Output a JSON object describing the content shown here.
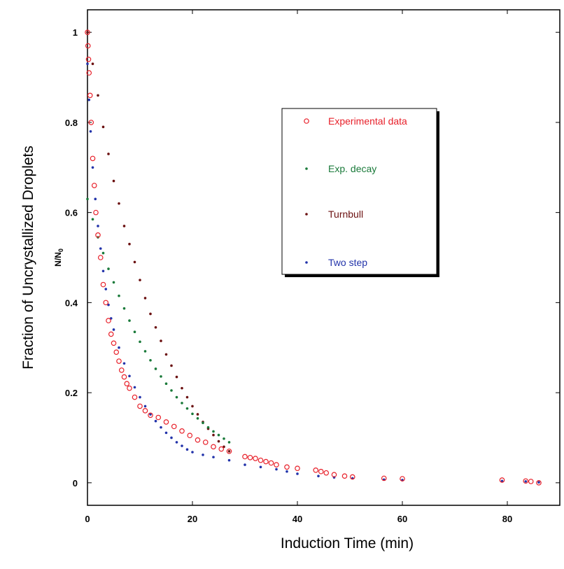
{
  "chart_data": {
    "type": "scatter",
    "xlabel": "Induction Time (min)",
    "ylabel": "Fraction of Uncrystallized Droplets",
    "ylabel_sub": "N/N",
    "ylabel_sub_subscript": "0",
    "xlim": [
      0,
      90
    ],
    "ylim": [
      -0.05,
      1.05
    ],
    "xticks": [
      0,
      20,
      40,
      60,
      80
    ],
    "xtick_labels": [
      "0",
      "20",
      "40",
      "60",
      "80"
    ],
    "yticks": [
      0,
      0.2,
      0.4,
      0.6,
      0.8,
      1
    ],
    "ytick_labels": [
      "0",
      "0.2",
      "0.4",
      "0.6",
      "0.8",
      "1"
    ],
    "grid": false,
    "legend_position": "top-right (inside plot)",
    "series": [
      {
        "name": "Experimental data",
        "marker": "open-circle",
        "color": "#e8202a",
        "points": [
          [
            0.0,
            1.0
          ],
          [
            0.1,
            0.97
          ],
          [
            0.2,
            0.94
          ],
          [
            0.3,
            0.91
          ],
          [
            0.5,
            0.86
          ],
          [
            0.7,
            0.8
          ],
          [
            1.0,
            0.72
          ],
          [
            1.3,
            0.66
          ],
          [
            1.6,
            0.6
          ],
          [
            2.0,
            0.55
          ],
          [
            2.5,
            0.5
          ],
          [
            3.0,
            0.44
          ],
          [
            3.5,
            0.4
          ],
          [
            4.0,
            0.36
          ],
          [
            4.5,
            0.33
          ],
          [
            5.0,
            0.31
          ],
          [
            5.5,
            0.29
          ],
          [
            6.0,
            0.27
          ],
          [
            6.5,
            0.25
          ],
          [
            7.0,
            0.235
          ],
          [
            7.5,
            0.22
          ],
          [
            8.0,
            0.21
          ],
          [
            9.0,
            0.19
          ],
          [
            10.0,
            0.17
          ],
          [
            11.0,
            0.16
          ],
          [
            12.0,
            0.15
          ],
          [
            13.5,
            0.145
          ],
          [
            15.0,
            0.135
          ],
          [
            16.5,
            0.125
          ],
          [
            18.0,
            0.115
          ],
          [
            19.5,
            0.105
          ],
          [
            21.0,
            0.095
          ],
          [
            22.5,
            0.09
          ],
          [
            24.0,
            0.08
          ],
          [
            25.5,
            0.075
          ],
          [
            27.0,
            0.07
          ],
          [
            30.0,
            0.058
          ],
          [
            31.0,
            0.056
          ],
          [
            32.0,
            0.054
          ],
          [
            33.0,
            0.05
          ],
          [
            34.0,
            0.047
          ],
          [
            35.0,
            0.044
          ],
          [
            36.0,
            0.04
          ],
          [
            38.0,
            0.035
          ],
          [
            40.0,
            0.032
          ],
          [
            43.5,
            0.028
          ],
          [
            44.5,
            0.025
          ],
          [
            45.5,
            0.022
          ],
          [
            47.0,
            0.018
          ],
          [
            49.0,
            0.015
          ],
          [
            50.5,
            0.013
          ],
          [
            56.5,
            0.01
          ],
          [
            60.0,
            0.009
          ],
          [
            79.0,
            0.006
          ],
          [
            83.5,
            0.004
          ],
          [
            84.5,
            0.003
          ],
          [
            86.0,
            0.0
          ]
        ]
      },
      {
        "name": "Exp. decay",
        "marker": "dot",
        "color": "#1a7a3a",
        "points": [
          [
            0.0,
            0.63
          ],
          [
            1.0,
            0.585
          ],
          [
            2.0,
            0.545
          ],
          [
            3.0,
            0.51
          ],
          [
            4.0,
            0.475
          ],
          [
            5.0,
            0.445
          ],
          [
            6.0,
            0.415
          ],
          [
            7.0,
            0.387
          ],
          [
            8.0,
            0.36
          ],
          [
            9.0,
            0.335
          ],
          [
            10.0,
            0.313
          ],
          [
            11.0,
            0.292
          ],
          [
            12.0,
            0.272
          ],
          [
            13.0,
            0.253
          ],
          [
            14.0,
            0.236
          ],
          [
            15.0,
            0.22
          ],
          [
            16.0,
            0.205
          ],
          [
            17.0,
            0.19
          ],
          [
            18.0,
            0.177
          ],
          [
            19.0,
            0.165
          ],
          [
            20.0,
            0.153
          ],
          [
            21.0,
            0.143
          ],
          [
            22.0,
            0.133
          ],
          [
            23.0,
            0.123
          ],
          [
            24.0,
            0.114
          ],
          [
            25.0,
            0.106
          ],
          [
            26.0,
            0.098
          ],
          [
            27.0,
            0.09
          ]
        ]
      },
      {
        "name": "Turnbull",
        "marker": "dot",
        "color": "#6b1010",
        "points": [
          [
            0.0,
            1.0
          ],
          [
            1.0,
            0.93
          ],
          [
            2.0,
            0.86
          ],
          [
            3.0,
            0.79
          ],
          [
            4.0,
            0.73
          ],
          [
            5.0,
            0.67
          ],
          [
            6.0,
            0.62
          ],
          [
            7.0,
            0.57
          ],
          [
            8.0,
            0.53
          ],
          [
            9.0,
            0.49
          ],
          [
            10.0,
            0.45
          ],
          [
            11.0,
            0.41
          ],
          [
            12.0,
            0.375
          ],
          [
            13.0,
            0.345
          ],
          [
            14.0,
            0.315
          ],
          [
            15.0,
            0.285
          ],
          [
            16.0,
            0.26
          ],
          [
            17.0,
            0.235
          ],
          [
            18.0,
            0.21
          ],
          [
            19.0,
            0.19
          ],
          [
            20.0,
            0.17
          ],
          [
            21.0,
            0.152
          ],
          [
            22.0,
            0.135
          ],
          [
            23.0,
            0.12
          ],
          [
            24.0,
            0.106
          ],
          [
            25.0,
            0.092
          ],
          [
            26.0,
            0.08
          ],
          [
            27.0,
            0.07
          ]
        ]
      },
      {
        "name": "Two step",
        "marker": "dot",
        "color": "#2233aa",
        "points": [
          [
            0.0,
            0.93
          ],
          [
            0.3,
            0.85
          ],
          [
            0.6,
            0.78
          ],
          [
            1.0,
            0.7
          ],
          [
            1.5,
            0.63
          ],
          [
            2.0,
            0.57
          ],
          [
            2.5,
            0.52
          ],
          [
            3.0,
            0.47
          ],
          [
            3.5,
            0.43
          ],
          [
            4.0,
            0.395
          ],
          [
            4.5,
            0.365
          ],
          [
            5.0,
            0.34
          ],
          [
            6.0,
            0.3
          ],
          [
            7.0,
            0.265
          ],
          [
            8.0,
            0.237
          ],
          [
            9.0,
            0.212
          ],
          [
            10.0,
            0.19
          ],
          [
            11.0,
            0.17
          ],
          [
            12.0,
            0.152
          ],
          [
            13.0,
            0.137
          ],
          [
            14.0,
            0.123
          ],
          [
            15.0,
            0.111
          ],
          [
            16.0,
            0.1
          ],
          [
            17.0,
            0.09
          ],
          [
            18.0,
            0.082
          ],
          [
            19.0,
            0.074
          ],
          [
            20.0,
            0.068
          ],
          [
            22.0,
            0.062
          ],
          [
            24.0,
            0.057
          ],
          [
            27.0,
            0.05
          ],
          [
            30.0,
            0.04
          ],
          [
            33.0,
            0.035
          ],
          [
            36.0,
            0.03
          ],
          [
            38.0,
            0.025
          ],
          [
            40.0,
            0.02
          ],
          [
            44.0,
            0.015
          ],
          [
            47.0,
            0.012
          ],
          [
            50.5,
            0.01
          ],
          [
            56.5,
            0.007
          ],
          [
            60.0,
            0.006
          ],
          [
            79.0,
            0.004
          ],
          [
            83.5,
            0.003
          ],
          [
            86.0,
            0.001
          ]
        ]
      }
    ]
  }
}
